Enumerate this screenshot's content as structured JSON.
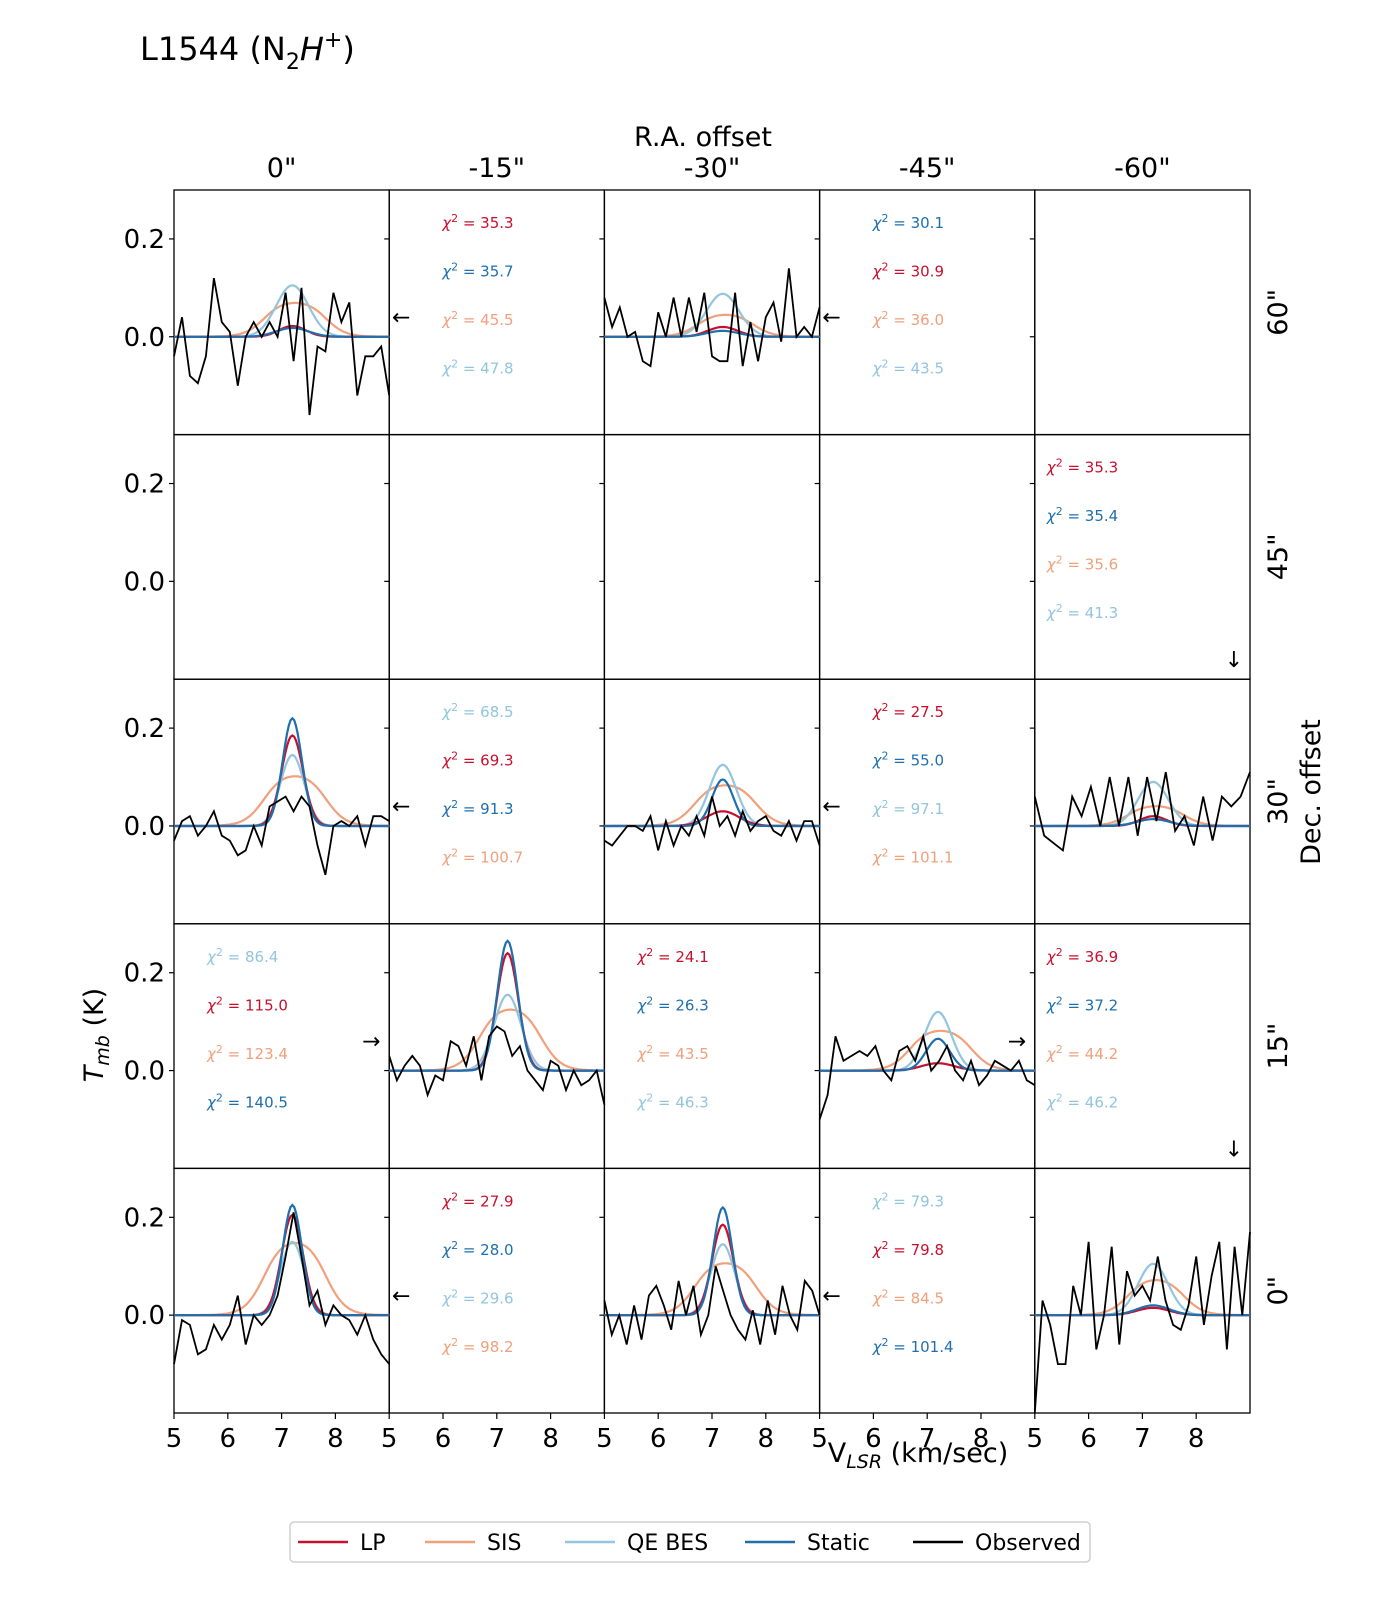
{
  "chart_data": {
    "type": "line",
    "title": "L1544 (N2H+)",
    "title_parts": {
      "base": "L1544 (N",
      "sub": "2",
      "ital": "H",
      "sup": "+",
      "close": ")"
    },
    "x_axis_title": "R.A. offset",
    "y_axis_right_title": "Dec. offset",
    "xlabel_parts": {
      "base": "V",
      "sub": "LSR",
      "rest": " (km/sec)"
    },
    "ylabel_parts": {
      "base": "T",
      "sub": "mb",
      "rest": " (K)"
    },
    "ra_offsets": [
      "0\"",
      "-15\"",
      "-30\"",
      "-45\"",
      "-60\""
    ],
    "dec_offsets": [
      "60\"",
      "45\"",
      "30\"",
      "15\"",
      "0\""
    ],
    "xlim": [
      5,
      9
    ],
    "xticks": [
      "5",
      "6",
      "7",
      "8"
    ],
    "ylim": [
      -0.2,
      0.3
    ],
    "yticks": [
      "0.2",
      "0.0"
    ],
    "legend": [
      "LP",
      "SIS",
      "QE BES",
      "Static",
      "Observed"
    ],
    "colors": {
      "LP": "#c8102e",
      "SIS": "#f0a07c",
      "QE BES": "#92c5de",
      "Static": "#1f6fad",
      "Observed": "#000000"
    },
    "chi_prefix": "χ",
    "chi_sup": "2",
    "chi_eq": " = ",
    "series_by_panel": [
      {
        "row": 0,
        "col": 0,
        "arrow": "",
        "chi": [],
        "models": {
          "LP": [
            0.022,
            0.25
          ],
          "SIS": [
            0.075,
            0.5
          ],
          "QE BES": [
            0.105,
            0.3
          ],
          "Static": [
            0.018,
            0.3
          ]
        },
        "observed": [
          -0.04,
          0.04,
          -0.08,
          -0.095,
          -0.04,
          0.12,
          0.03,
          0.01,
          -0.1,
          0.0,
          0.03,
          0.0,
          0.03,
          0.0,
          0.09,
          -0.05,
          0.1,
          -0.16,
          -0.02,
          -0.03,
          0.09,
          0.03,
          0.07,
          -0.12,
          -0.04,
          -0.04,
          -0.02,
          -0.12
        ]
      },
      {
        "row": 0,
        "col": 1,
        "arrow": "←",
        "chi": [
          [
            "LP",
            "35.3"
          ],
          [
            "Static",
            "35.7"
          ],
          [
            "SIS",
            "45.5"
          ],
          [
            "QE BES",
            "47.8"
          ]
        ],
        "models": null,
        "observed": null
      },
      {
        "row": 0,
        "col": 2,
        "arrow": "",
        "chi": [],
        "models": {
          "LP": [
            0.02,
            0.28
          ],
          "SIS": [
            0.05,
            0.45
          ],
          "QE BES": [
            0.088,
            0.3
          ],
          "Static": [
            0.012,
            0.3
          ]
        },
        "observed": [
          0.08,
          0.02,
          0.06,
          0.0,
          0.01,
          -0.05,
          -0.06,
          0.05,
          0.0,
          0.08,
          0.0,
          0.08,
          0.01,
          0.09,
          -0.04,
          -0.05,
          -0.05,
          0.09,
          -0.06,
          0.03,
          -0.05,
          0.04,
          0.07,
          -0.01,
          0.14,
          0.0,
          0.02,
          0.0,
          0.06
        ]
      },
      {
        "row": 0,
        "col": 3,
        "arrow": "←",
        "chi": [
          [
            "Static",
            "30.1"
          ],
          [
            "LP",
            "30.9"
          ],
          [
            "SIS",
            "36.0"
          ],
          [
            "QE BES",
            "43.5"
          ]
        ],
        "models": null,
        "observed": null
      },
      {
        "row": 1,
        "col": 4,
        "arrow": "↓",
        "chi": [
          [
            "LP",
            "35.3"
          ],
          [
            "Static",
            "35.4"
          ],
          [
            "SIS",
            "35.6"
          ],
          [
            "QE BES",
            "41.3"
          ]
        ],
        "models": null,
        "observed": null
      },
      {
        "row": 2,
        "col": 0,
        "arrow": "",
        "chi": [],
        "models": {
          "LP": [
            0.185,
            0.2
          ],
          "SIS": [
            0.11,
            0.5
          ],
          "QE BES": [
            0.145,
            0.22
          ],
          "Static": [
            0.22,
            0.18
          ]
        },
        "observed": [
          -0.03,
          0.01,
          0.02,
          -0.02,
          0.0,
          0.03,
          -0.02,
          -0.03,
          -0.06,
          -0.05,
          0.0,
          -0.04,
          0.04,
          0.05,
          0.06,
          0.03,
          0.06,
          0.04,
          -0.04,
          -0.1,
          0.0,
          0.01,
          0.0,
          0.02,
          -0.04,
          0.02,
          0.02,
          0.01
        ]
      },
      {
        "row": 2,
        "col": 1,
        "arrow": "←",
        "chi": [
          [
            "QE BES",
            "68.5"
          ],
          [
            "LP",
            "69.3"
          ],
          [
            "Static",
            "91.3"
          ],
          [
            "SIS",
            "100.7"
          ]
        ],
        "models": null,
        "observed": null
      },
      {
        "row": 2,
        "col": 2,
        "arrow": "",
        "chi": [],
        "models": {
          "LP": [
            0.03,
            0.3
          ],
          "SIS": [
            0.09,
            0.5
          ],
          "QE BES": [
            0.125,
            0.25
          ],
          "Static": [
            0.095,
            0.2
          ]
        },
        "observed": [
          -0.03,
          -0.04,
          -0.02,
          0.0,
          0.0,
          -0.01,
          0.02,
          -0.05,
          0.01,
          -0.04,
          0.0,
          -0.02,
          0.02,
          -0.02,
          0.06,
          0.0,
          0.02,
          -0.02,
          0.03,
          -0.01,
          0.01,
          0.02,
          -0.01,
          -0.02,
          0.01,
          -0.03,
          0.01,
          0.01,
          -0.04
        ]
      },
      {
        "row": 2,
        "col": 3,
        "arrow": "←",
        "chi": [
          [
            "LP",
            "27.5"
          ],
          [
            "Static",
            "55.0"
          ],
          [
            "QE BES",
            "97.1"
          ],
          [
            "SIS",
            "101.1"
          ]
        ],
        "models": null,
        "observed": null
      },
      {
        "row": 2,
        "col": 4,
        "arrow": "",
        "chi": [],
        "models": {
          "LP": [
            0.02,
            0.25
          ],
          "SIS": [
            0.045,
            0.45
          ],
          "QE BES": [
            0.09,
            0.28
          ],
          "Static": [
            0.014,
            0.3
          ]
        },
        "observed": [
          0.06,
          -0.02,
          -0.035,
          -0.05,
          0.06,
          0.02,
          0.08,
          0.0,
          0.1,
          0.0,
          0.1,
          -0.02,
          0.1,
          0.01,
          0.11,
          -0.01,
          0.02,
          -0.04,
          0.06,
          -0.03,
          0.06,
          0.04,
          0.06,
          0.11
        ]
      },
      {
        "row": 3,
        "col": 0,
        "arrow": "→",
        "chi": [
          [
            "QE BES",
            "86.4"
          ],
          [
            "LP",
            "115.0"
          ],
          [
            "SIS",
            "123.4"
          ],
          [
            "Static",
            "140.5"
          ]
        ],
        "models": null,
        "observed": null
      },
      {
        "row": 3,
        "col": 1,
        "arrow": "",
        "chi": [],
        "models": {
          "LP": [
            0.24,
            0.2
          ],
          "SIS": [
            0.135,
            0.5
          ],
          "QE BES": [
            0.155,
            0.25
          ],
          "Static": [
            0.265,
            0.19
          ]
        },
        "observed": [
          0.03,
          -0.02,
          0.01,
          0.03,
          0.01,
          -0.05,
          -0.01,
          -0.02,
          0.06,
          0.05,
          0.01,
          0.07,
          -0.02,
          0.07,
          0.09,
          0.08,
          0.03,
          0.05,
          0.0,
          -0.02,
          -0.04,
          0.02,
          0.01,
          -0.04,
          0.0,
          -0.03,
          -0.02,
          0.0,
          -0.07
        ]
      },
      {
        "row": 3,
        "col": 2,
        "arrow": "",
        "chi": [
          [
            "LP",
            "24.1"
          ],
          [
            "Static",
            "26.3"
          ],
          [
            "SIS",
            "43.5"
          ],
          [
            "QE BES",
            "46.3"
          ]
        ],
        "models": null,
        "observed": null
      },
      {
        "row": 3,
        "col": 3,
        "arrow": "→",
        "chi": [],
        "models": {
          "LP": [
            0.015,
            0.3
          ],
          "SIS": [
            0.088,
            0.5
          ],
          "QE BES": [
            0.12,
            0.25
          ],
          "Static": [
            0.065,
            0.22
          ]
        },
        "observed": [
          -0.1,
          -0.05,
          0.07,
          0.02,
          0.03,
          0.04,
          0.03,
          0.05,
          0.0,
          -0.02,
          0.04,
          0.05,
          0.02,
          0.07,
          0.0,
          0.02,
          0.05,
          0.0,
          -0.02,
          0.02,
          -0.03,
          -0.01,
          0.02,
          0.01,
          0.0,
          0.02,
          -0.02,
          -0.03
        ]
      },
      {
        "row": 3,
        "col": 4,
        "arrow": "↓",
        "chi": [
          [
            "LP",
            "36.9"
          ],
          [
            "Static",
            "37.2"
          ],
          [
            "SIS",
            "44.2"
          ],
          [
            "QE BES",
            "46.2"
          ]
        ],
        "models": null,
        "observed": null
      },
      {
        "row": 4,
        "col": 0,
        "arrow": "",
        "chi": [],
        "models": {
          "LP": [
            0.205,
            0.2
          ],
          "SIS": [
            0.16,
            0.5
          ],
          "QE BES": [
            0.15,
            0.22
          ],
          "Static": [
            0.225,
            0.18
          ]
        },
        "observed": [
          -0.1,
          -0.01,
          -0.02,
          -0.08,
          -0.07,
          -0.02,
          -0.05,
          -0.02,
          0.04,
          -0.06,
          0.0,
          -0.02,
          0.0,
          0.04,
          0.12,
          0.21,
          0.12,
          0.02,
          0.05,
          -0.02,
          0.02,
          0.0,
          -0.01,
          -0.04,
          0.0,
          -0.05,
          -0.08,
          -0.1
        ]
      },
      {
        "row": 4,
        "col": 1,
        "arrow": "←",
        "chi": [
          [
            "LP",
            "27.9"
          ],
          [
            "Static",
            "28.0"
          ],
          [
            "QE BES",
            "29.6"
          ],
          [
            "SIS",
            "98.2"
          ]
        ],
        "models": null,
        "observed": null
      },
      {
        "row": 4,
        "col": 2,
        "arrow": "",
        "chi": [],
        "models": {
          "LP": [
            0.185,
            0.2
          ],
          "SIS": [
            0.115,
            0.5
          ],
          "QE BES": [
            0.145,
            0.22
          ],
          "Static": [
            0.22,
            0.18
          ]
        },
        "observed": [
          0.03,
          -0.04,
          0.0,
          -0.06,
          0.02,
          -0.05,
          0.04,
          0.06,
          0.02,
          -0.03,
          0.07,
          0.0,
          0.06,
          -0.04,
          0.0,
          0.1,
          0.05,
          0.0,
          -0.03,
          -0.05,
          0.01,
          -0.06,
          0.03,
          -0.04,
          0.06,
          0.0,
          -0.03,
          0.07,
          0.05,
          0.0
        ]
      },
      {
        "row": 4,
        "col": 3,
        "arrow": "←",
        "chi": [
          [
            "QE BES",
            "79.3"
          ],
          [
            "LP",
            "79.8"
          ],
          [
            "SIS",
            "84.5"
          ],
          [
            "Static",
            "101.4"
          ]
        ],
        "models": null,
        "observed": null
      },
      {
        "row": 4,
        "col": 4,
        "arrow": "",
        "chi": [],
        "models": {
          "LP": [
            0.015,
            0.3
          ],
          "SIS": [
            0.08,
            0.45
          ],
          "QE BES": [
            0.105,
            0.28
          ],
          "Static": [
            0.02,
            0.3
          ]
        },
        "observed": [
          -0.2,
          0.03,
          -0.02,
          -0.1,
          -0.1,
          0.06,
          0.0,
          0.15,
          -0.07,
          0.0,
          0.14,
          -0.06,
          0.09,
          0.04,
          0.06,
          0.03,
          0.12,
          0.03,
          -0.02,
          -0.03,
          0.02,
          0.12,
          -0.02,
          0.08,
          0.15,
          -0.07,
          0.14,
          0.0,
          0.17
        ]
      }
    ]
  }
}
